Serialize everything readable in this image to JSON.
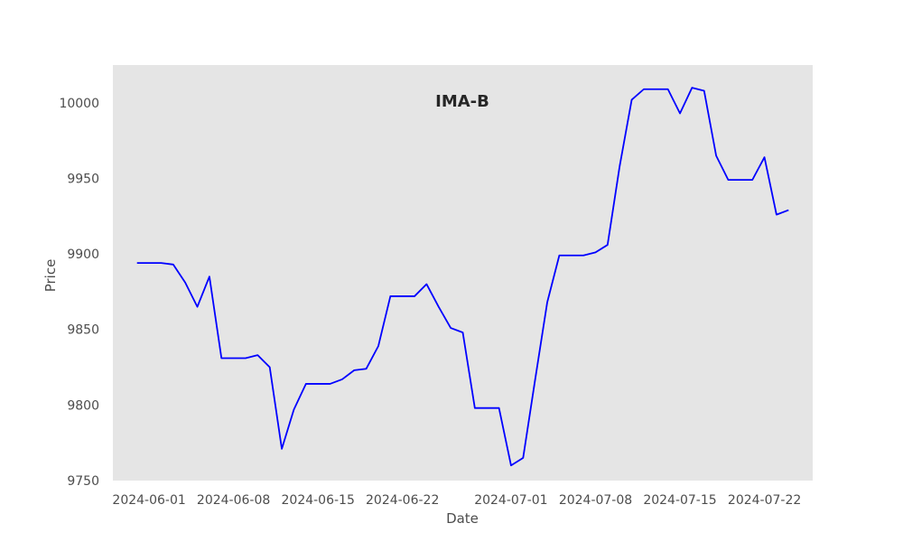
{
  "chart_data": {
    "type": "line",
    "title": "IMA-B",
    "xlabel": "Date",
    "ylabel": "Price",
    "ylim": [
      9750,
      10025
    ],
    "xlim": [
      "2024-05-29",
      "2024-07-26"
    ],
    "grid": false,
    "colors": {
      "line": "#0000ff",
      "plot_bg": "#e5e5e5"
    },
    "x_ticks": [
      "2024-06-01",
      "2024-06-08",
      "2024-06-15",
      "2024-06-22",
      "2024-07-01",
      "2024-07-08",
      "2024-07-15",
      "2024-07-22"
    ],
    "y_ticks": [
      9750,
      9800,
      9850,
      9900,
      9950,
      10000
    ],
    "series": [
      {
        "x": [
          "2024-05-31",
          "2024-06-01",
          "2024-06-02",
          "2024-06-03",
          "2024-06-04",
          "2024-06-05",
          "2024-06-06",
          "2024-06-07",
          "2024-06-08",
          "2024-06-09",
          "2024-06-10",
          "2024-06-11",
          "2024-06-12",
          "2024-06-13",
          "2024-06-14",
          "2024-06-15",
          "2024-06-16",
          "2024-06-17",
          "2024-06-18",
          "2024-06-19",
          "2024-06-20",
          "2024-06-21",
          "2024-06-22",
          "2024-06-23",
          "2024-06-24",
          "2024-06-25",
          "2024-06-26",
          "2024-06-27",
          "2024-06-28",
          "2024-06-29",
          "2024-06-30",
          "2024-07-01",
          "2024-07-02",
          "2024-07-03",
          "2024-07-04",
          "2024-07-05",
          "2024-07-06",
          "2024-07-07",
          "2024-07-08",
          "2024-07-09",
          "2024-07-10",
          "2024-07-11",
          "2024-07-12",
          "2024-07-13",
          "2024-07-14",
          "2024-07-15",
          "2024-07-16",
          "2024-07-17",
          "2024-07-18",
          "2024-07-19",
          "2024-07-20",
          "2024-07-21",
          "2024-07-22",
          "2024-07-23",
          "2024-07-24"
        ],
        "y": [
          9894,
          9894,
          9894,
          9893,
          9881,
          9865,
          9885,
          9831,
          9831,
          9831,
          9833,
          9825,
          9771,
          9797,
          9814,
          9814,
          9814,
          9817,
          9823,
          9824,
          9839,
          9872,
          9872,
          9872,
          9880,
          9865,
          9851,
          9848,
          9798,
          9798,
          9798,
          9760,
          9765,
          9817,
          9868,
          9899,
          9899,
          9899,
          9901,
          9906,
          9958,
          10002,
          10009,
          10009,
          10009,
          9993,
          10010,
          10008,
          9965,
          9949,
          9949,
          9949,
          9964,
          9926,
          9929
        ]
      }
    ]
  }
}
